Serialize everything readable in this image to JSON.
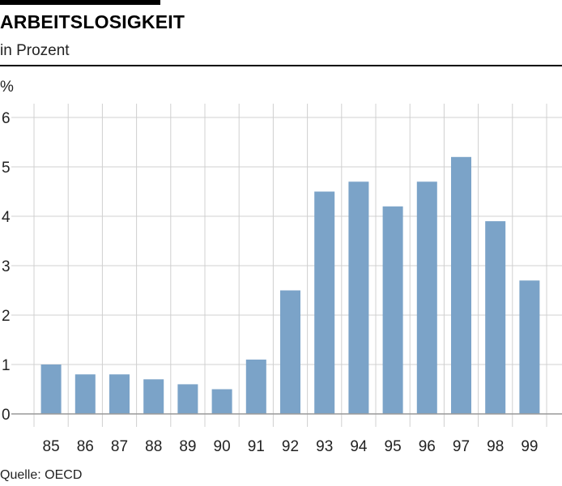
{
  "header": {
    "title": "ARBEITSLOSIGKEIT",
    "subtitle": "in Prozent",
    "unit": "%"
  },
  "footer": {
    "source": "Quelle: OECD"
  },
  "colors": {
    "bar": "#7ba3c8",
    "grid": "#d0d0d0",
    "axis": "#999999",
    "text": "#222222"
  },
  "chart_data": {
    "type": "bar",
    "title": "ARBEITSLOSIGKEIT",
    "subtitle": "in Prozent",
    "ylabel": "%",
    "categories": [
      "85",
      "86",
      "87",
      "88",
      "89",
      "90",
      "91",
      "92",
      "93",
      "94",
      "95",
      "96",
      "97",
      "98",
      "99"
    ],
    "values": [
      1.0,
      0.8,
      0.8,
      0.7,
      0.6,
      0.5,
      1.1,
      2.5,
      4.5,
      4.7,
      4.2,
      4.7,
      5.2,
      3.9,
      2.7
    ],
    "ylim": [
      0,
      6
    ],
    "yticks": [
      "0",
      "1",
      "2",
      "3",
      "4",
      "5",
      "6"
    ],
    "grid": true,
    "source": "Quelle: OECD"
  }
}
